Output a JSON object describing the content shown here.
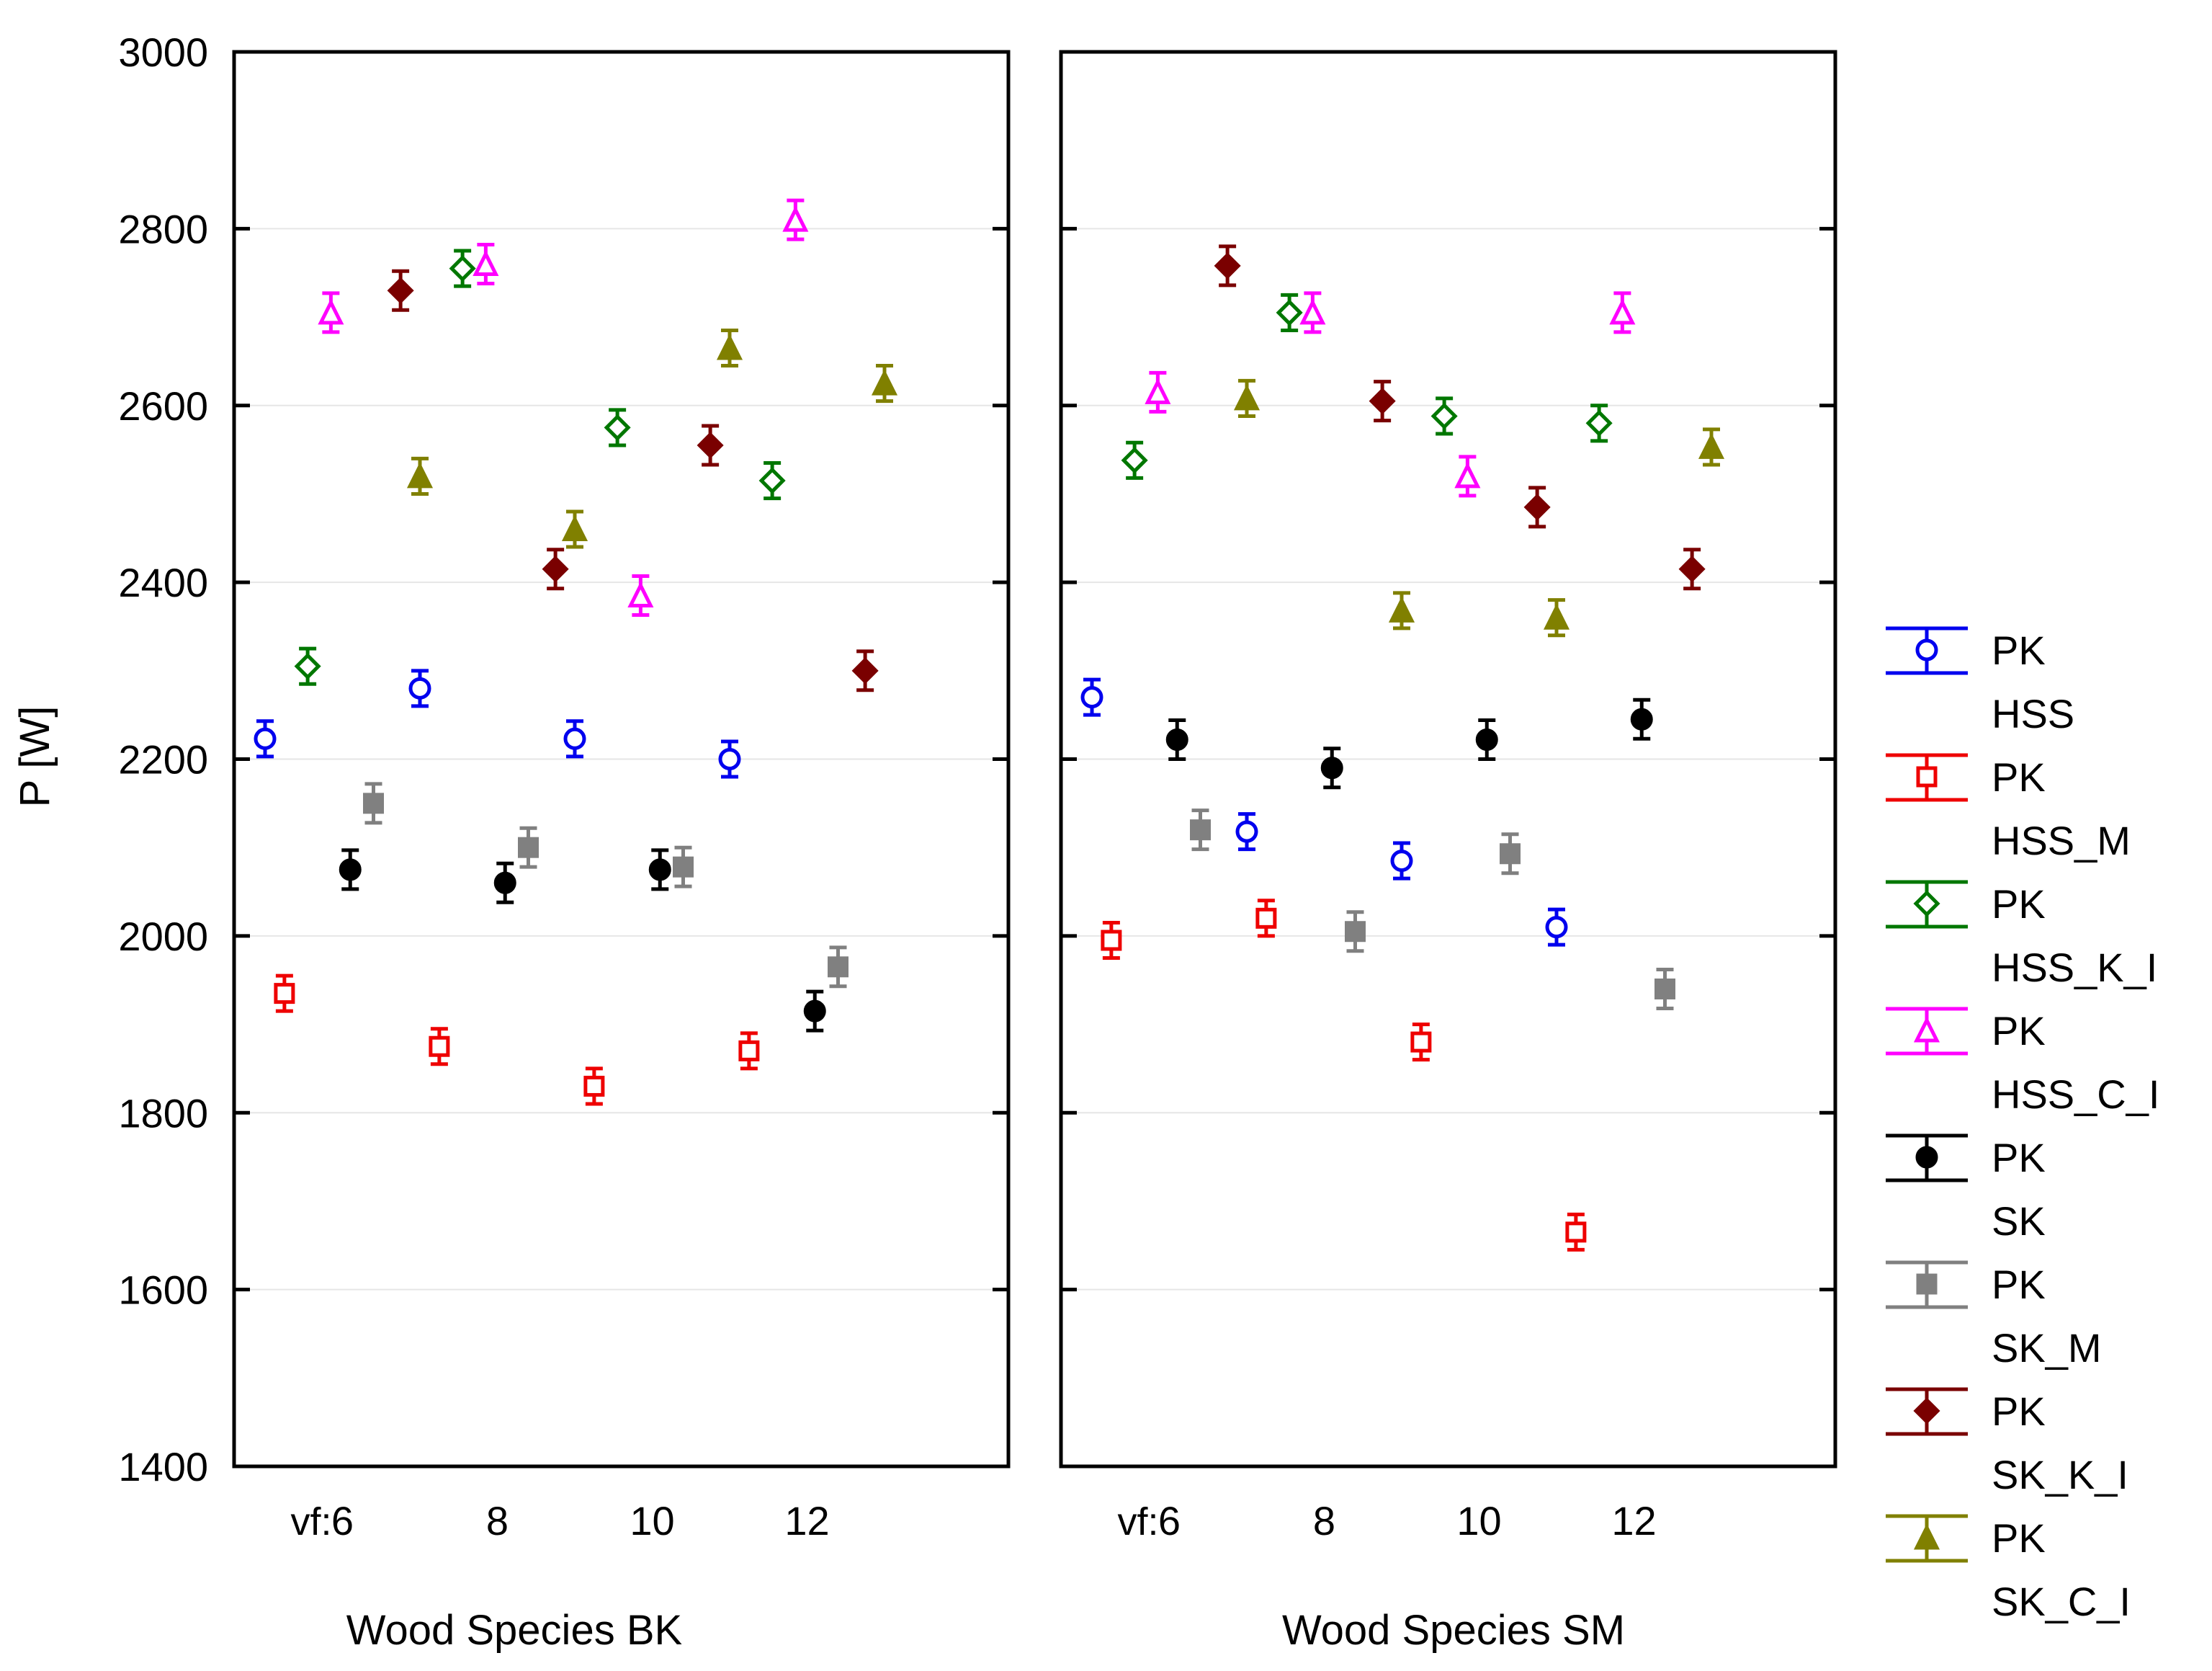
{
  "chart_data": {
    "type": "scatter",
    "ylabel": "P [W]",
    "ylim": [
      1400,
      3000
    ],
    "yticks": [
      1400,
      1600,
      1800,
      2000,
      2200,
      2400,
      2600,
      2800,
      3000
    ],
    "xlim": [
      4.6,
      14.6
    ],
    "xticks": [
      6,
      8,
      10,
      12
    ],
    "xtick_prefix": "vf:",
    "grid": true,
    "legend_position": "right",
    "series": [
      {
        "name": "PK HSS",
        "line1": "PK",
        "line2": "HSS",
        "color": "#0000ee",
        "marker": "circle-open",
        "err": 20,
        "offset": -1.0
      },
      {
        "name": "PK HSS_M",
        "line1": "PK",
        "line2": "HSS_M",
        "color": "#ee0000",
        "marker": "square-open",
        "err": 20,
        "offset": -0.75
      },
      {
        "name": "PK HSS_K_I",
        "line1": "PK",
        "line2": "HSS_K_I",
        "color": "#007700",
        "marker": "diamond-open",
        "err": 20,
        "offset": -0.45
      },
      {
        "name": "PK HSS_C_I",
        "line1": "PK",
        "line2": "HSS_C_I",
        "color": "#ff00ff",
        "marker": "triangle-open",
        "err": 22,
        "offset": -0.15
      },
      {
        "name": "PK SK",
        "line1": "PK",
        "line2": "SK",
        "color": "#000000",
        "marker": "circle-filled",
        "err": 22,
        "offset": 0.1
      },
      {
        "name": "PK SK_M",
        "line1": "PK",
        "line2": "SK_M",
        "color": "#808080",
        "marker": "square-filled",
        "err": 22,
        "offset": 0.4
      },
      {
        "name": "PK SK_K_I",
        "line1": "PK",
        "line2": "SK_K_I",
        "color": "#7a0000",
        "marker": "diamond-filled",
        "err": 22,
        "offset": 0.75
      },
      {
        "name": "PK SK_C_I",
        "line1": "PK",
        "line2": "SK_C_I",
        "color": "#808000",
        "marker": "triangle-filled",
        "err": 20,
        "offset": 1.0
      }
    ],
    "panels": [
      {
        "xlabel": "Wood Species BK",
        "values": [
          [
            2223,
            2280,
            2223,
            2200
          ],
          [
            1935,
            1875,
            1830,
            1870
          ],
          [
            2305,
            2755,
            2575,
            2515
          ],
          [
            2705,
            2760,
            2385,
            2810
          ],
          [
            2075,
            2060,
            2075,
            1915
          ],
          [
            2150,
            2100,
            2078,
            1965
          ],
          [
            2730,
            2415,
            2555,
            2300
          ],
          [
            2520,
            2460,
            2665,
            2625
          ]
        ]
      },
      {
        "xlabel": "Wood Species SM",
        "values": [
          [
            2270,
            2118,
            2085,
            2010
          ],
          [
            1995,
            2020,
            1880,
            1665
          ],
          [
            2538,
            2705,
            2588,
            2580
          ],
          [
            2615,
            2705,
            2520,
            2705
          ],
          [
            2222,
            2190,
            2222,
            2245
          ],
          [
            2120,
            2005,
            2093,
            1940
          ],
          [
            2758,
            2605,
            2485,
            2415
          ],
          [
            2608,
            2368,
            2360,
            2553
          ]
        ]
      }
    ]
  }
}
